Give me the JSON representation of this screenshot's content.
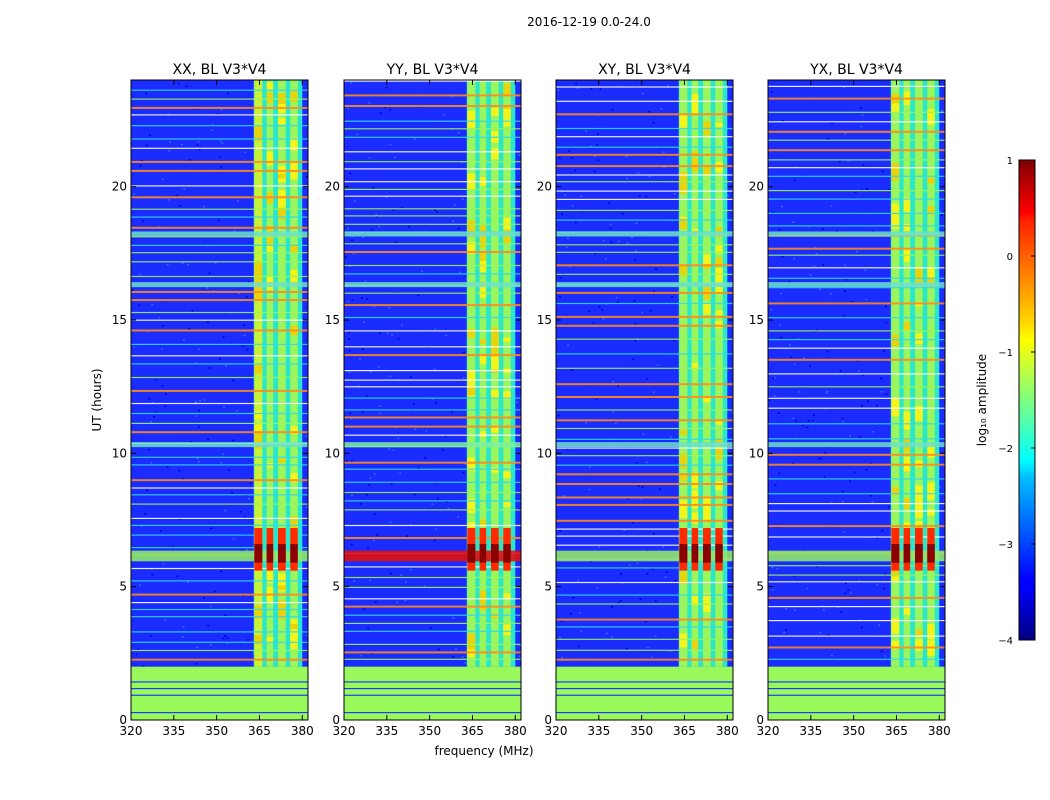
{
  "figure": {
    "suptitle": "2016-12-19 0.0-24.0",
    "xlabel": "frequency (MHz)",
    "ylabel": "UT (hours)"
  },
  "chart_data": {
    "type": "heatmap",
    "x_range": [
      320,
      382
    ],
    "y_range": [
      0,
      24
    ],
    "x_ticks": [
      "320",
      "335",
      "350",
      "365",
      "380"
    ],
    "x_tick_values": [
      320,
      335,
      350,
      365,
      380
    ],
    "y_ticks": [
      "0",
      "5",
      "10",
      "15",
      "20"
    ],
    "y_tick_values": [
      0,
      5,
      10,
      15,
      20
    ],
    "panels": [
      {
        "title": "XX, BL V3*V4"
      },
      {
        "title": "YY, BL V3*V4"
      },
      {
        "title": "XY, BL V3*V4"
      },
      {
        "title": "YX, BL V3*V4"
      }
    ],
    "colorbar": {
      "label": "log₁₀ amplitude",
      "range": [
        -4,
        1
      ],
      "tick_values": [
        1,
        0,
        -1,
        -2,
        -3,
        -4
      ],
      "ticks": [
        "1",
        "0",
        "−1",
        "−2",
        "−3",
        "−4"
      ],
      "colormap": "jet"
    },
    "features": {
      "bright_band_mhz": [
        363,
        380
      ],
      "bright_columns_mhz": [
        [
          363.2,
          366
        ],
        [
          367.5,
          369.8
        ],
        [
          371.5,
          374.2
        ],
        [
          375.8,
          378.4
        ]
      ],
      "strong_rfi_hours": [
        5.6,
        7.2
      ],
      "flagged_hours": [
        0,
        2.0
      ],
      "noisy_region_end_hours": 2.0
    }
  }
}
